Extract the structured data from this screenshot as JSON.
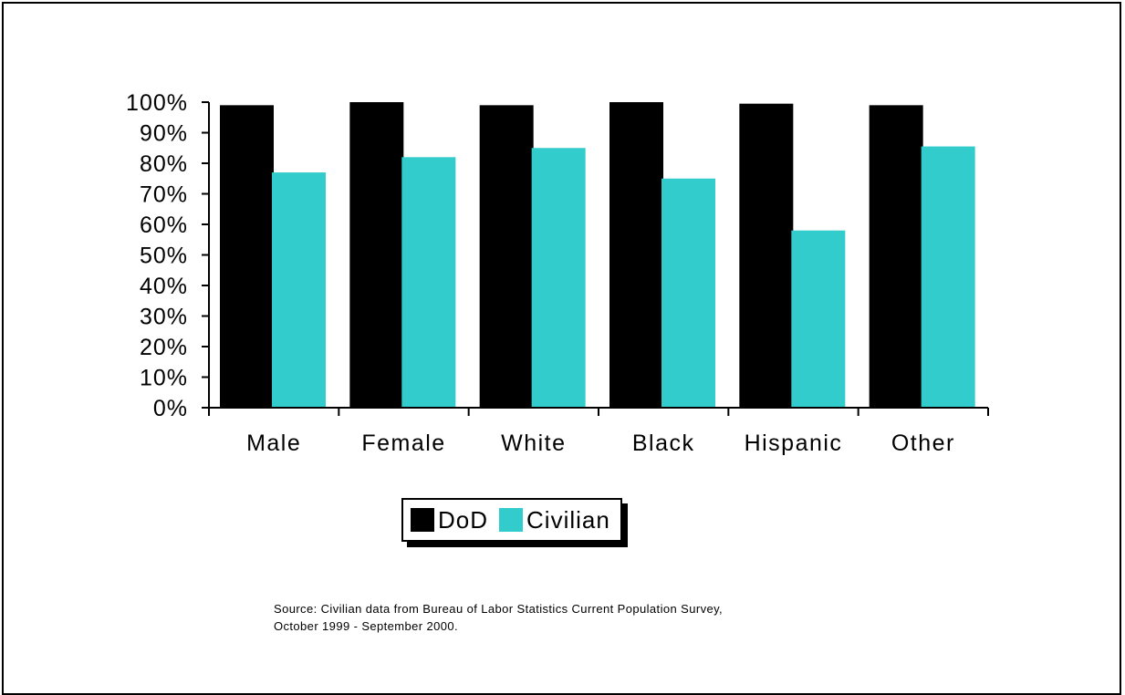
{
  "chart_data": {
    "type": "bar",
    "categories": [
      "Male",
      "Female",
      "White",
      "Black",
      "Hispanic",
      "Other"
    ],
    "series": [
      {
        "name": "DoD",
        "values": [
          99,
          100,
          99,
          100,
          99.5,
          99
        ],
        "color": "#000000"
      },
      {
        "name": "Civilian",
        "values": [
          77,
          82,
          85,
          75,
          58,
          85.5
        ],
        "color": "#33CCCC"
      }
    ],
    "yticks": [
      "0%",
      "10%",
      "20%",
      "30%",
      "40%",
      "50%",
      "60%",
      "70%",
      "80%",
      "90%",
      "100%"
    ],
    "ylim": [
      0,
      100
    ],
    "title": "",
    "xlabel": "",
    "ylabel": "",
    "grid": false,
    "legend_position": "bottom"
  },
  "legend": {
    "items": [
      {
        "label": "DoD",
        "color": "#000000"
      },
      {
        "label": "Civilian",
        "color": "#33CCCC"
      }
    ]
  },
  "source": {
    "line1": "Source:  Civilian data from Bureau of Labor Statistics Current Population Survey,",
    "line2": "October 1999 - September 2000."
  }
}
